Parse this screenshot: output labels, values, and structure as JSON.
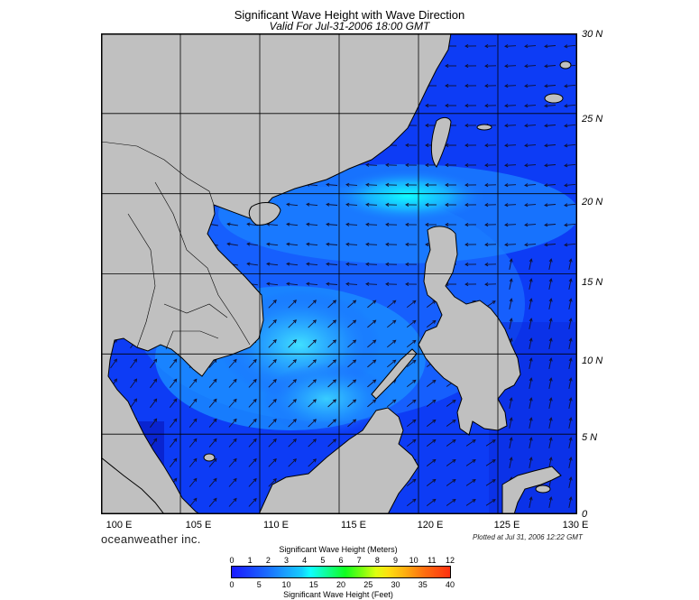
{
  "header": {
    "title": "Significant Wave Height with Wave Direction",
    "subtitle": "Valid For Jul-31-2006 18:00 GMT"
  },
  "map": {
    "lon_range": [
      100,
      130
    ],
    "lat_range": [
      0,
      30
    ],
    "lat_labels": [
      "30 N",
      "25 N",
      "20 N",
      "15 N",
      "10 N",
      "5 N",
      "0"
    ],
    "lon_labels": [
      "100 E",
      "105 E",
      "110 E",
      "115 E",
      "120 E",
      "125 E",
      "130 E"
    ],
    "colors": {
      "land": "#c0c0c0",
      "sea_low": "#0a3cf5",
      "sea_high": "#10ffff",
      "grid": "#000000"
    }
  },
  "footer": {
    "brand": "oceanweather inc.",
    "plotted": "Plotted at Jul 31, 2006 12:22 GMT"
  },
  "legend": {
    "title_meters": "Significant Wave Height (Meters)",
    "title_feet": "Significant Wave Height (Feet)",
    "meters_ticks": [
      "0",
      "1",
      "2",
      "3",
      "4",
      "5",
      "6",
      "7",
      "8",
      "9",
      "10",
      "11",
      "12"
    ],
    "feet_ticks": [
      "0",
      "5",
      "10",
      "15",
      "20",
      "25",
      "30",
      "35",
      "40"
    ]
  }
}
